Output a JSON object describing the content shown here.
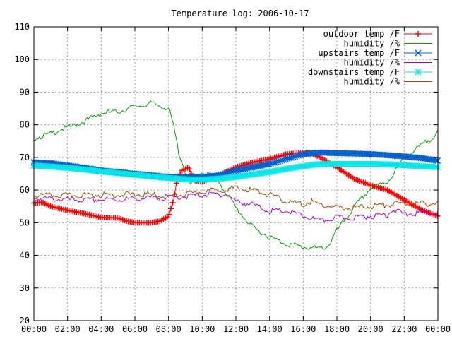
{
  "chart_data": {
    "type": "line",
    "title": "Temperature log: 2006-10-17",
    "xlabel": "",
    "ylabel": "",
    "xlim": [
      "00:00",
      "24:00"
    ],
    "ylim": [
      20,
      110
    ],
    "grid": true,
    "legend_position": "top-right",
    "x_ticks": [
      "00:00",
      "02:00",
      "04:00",
      "06:00",
      "08:00",
      "10:00",
      "12:00",
      "14:00",
      "16:00",
      "18:00",
      "20:00",
      "22:00",
      "00:00"
    ],
    "y_ticks": [
      "20",
      "30",
      "40",
      "50",
      "60",
      "70",
      "80",
      "90",
      "100",
      "110"
    ],
    "series": [
      {
        "name": "outdoor temp /F",
        "color": "#ff0000",
        "marker": "plus",
        "dense": true,
        "points": [
          [
            0,
            56
          ],
          [
            0.5,
            56.3
          ],
          [
            1,
            55
          ],
          [
            2,
            53.8
          ],
          [
            3,
            52.8
          ],
          [
            4,
            51.6
          ],
          [
            5,
            51.5
          ],
          [
            5.5,
            50.5
          ],
          [
            6,
            50
          ],
          [
            7,
            50
          ],
          [
            7.5,
            50.5
          ],
          [
            8,
            52
          ],
          [
            8.3,
            57
          ],
          [
            8.5,
            63
          ],
          [
            8.8,
            66
          ],
          [
            9.2,
            67
          ],
          [
            9.5,
            63
          ],
          [
            10,
            62.5
          ],
          [
            11,
            64.5
          ],
          [
            12,
            67
          ],
          [
            13,
            68.5
          ],
          [
            14,
            69.5
          ],
          [
            15,
            71
          ],
          [
            16,
            71.5
          ],
          [
            16.5,
            71.3
          ],
          [
            17,
            70
          ],
          [
            18,
            67
          ],
          [
            19,
            63.5
          ],
          [
            20,
            61.5
          ],
          [
            21,
            60
          ],
          [
            22,
            57
          ],
          [
            23,
            54
          ],
          [
            24,
            52
          ]
        ]
      },
      {
        "name": "humidity /%",
        "color": "#00a000",
        "marker": "none",
        "points": [
          [
            0,
            76.5
          ],
          [
            0.5,
            77
          ],
          [
            1,
            77.5
          ],
          [
            1.5,
            79
          ],
          [
            2,
            79.5
          ],
          [
            3,
            81.5
          ],
          [
            4,
            84
          ],
          [
            5,
            84.5
          ],
          [
            6,
            86
          ],
          [
            7,
            87
          ],
          [
            8,
            85.5
          ],
          [
            8.3,
            80
          ],
          [
            8.6,
            72
          ],
          [
            9,
            66
          ],
          [
            9.3,
            62
          ],
          [
            9.7,
            65
          ],
          [
            10,
            66
          ],
          [
            10.5,
            65
          ],
          [
            11,
            63
          ],
          [
            12,
            55
          ],
          [
            13,
            49
          ],
          [
            14,
            46
          ],
          [
            15,
            44
          ],
          [
            16,
            43
          ],
          [
            17,
            42.5
          ],
          [
            17.5,
            43.5
          ],
          [
            18,
            48
          ],
          [
            19,
            55
          ],
          [
            20,
            61
          ],
          [
            21,
            63
          ],
          [
            22,
            70
          ],
          [
            23,
            74
          ],
          [
            24,
            78
          ]
        ]
      },
      {
        "name": "upstairs temp /F",
        "color": "#0060d0",
        "marker": "x",
        "dense": true,
        "points": [
          [
            0,
            68.5
          ],
          [
            1,
            68.2
          ],
          [
            2,
            67.5
          ],
          [
            3,
            66.8
          ],
          [
            4,
            66
          ],
          [
            5,
            65.5
          ],
          [
            6,
            65
          ],
          [
            7,
            64.5
          ],
          [
            8,
            64
          ],
          [
            9,
            64
          ],
          [
            10,
            64
          ],
          [
            11,
            64.5
          ],
          [
            12,
            66
          ],
          [
            13,
            67
          ],
          [
            14,
            68
          ],
          [
            15,
            69.5
          ],
          [
            16,
            71
          ],
          [
            17,
            71.5
          ],
          [
            18,
            71.3
          ],
          [
            19,
            71.2
          ],
          [
            20,
            71
          ],
          [
            21,
            70.7
          ],
          [
            22,
            70.3
          ],
          [
            23,
            69.8
          ],
          [
            24,
            69
          ]
        ]
      },
      {
        "name": "humidity /%",
        "color": "#b000d0",
        "marker": "none",
        "points": [
          [
            0,
            58
          ],
          [
            1,
            57.8
          ],
          [
            2,
            57.5
          ],
          [
            3,
            57.3
          ],
          [
            4,
            57.5
          ],
          [
            5,
            57.5
          ],
          [
            6,
            57.8
          ],
          [
            7,
            58
          ],
          [
            8,
            58
          ],
          [
            9,
            58.5
          ],
          [
            10,
            59
          ],
          [
            11,
            59.2
          ],
          [
            11.5,
            59
          ],
          [
            12,
            57
          ],
          [
            13,
            56
          ],
          [
            14,
            54
          ],
          [
            15,
            54
          ],
          [
            16,
            52.5
          ],
          [
            17,
            51
          ],
          [
            18,
            52
          ],
          [
            19,
            52
          ],
          [
            20,
            52.5
          ],
          [
            21,
            53
          ],
          [
            21.3,
            54.5
          ],
          [
            22,
            53
          ],
          [
            23,
            53.5
          ],
          [
            24,
            53.5
          ]
        ]
      },
      {
        "name": "downstairs temp /F",
        "color": "#00e8e8",
        "marker": "star",
        "dense": true,
        "points": [
          [
            0,
            67.5
          ],
          [
            1,
            67.2
          ],
          [
            2,
            66.8
          ],
          [
            3,
            66.3
          ],
          [
            4,
            65.7
          ],
          [
            5,
            65.2
          ],
          [
            6,
            64.7
          ],
          [
            7,
            64.2
          ],
          [
            8,
            63.7
          ],
          [
            9,
            63.3
          ],
          [
            10,
            63.2
          ],
          [
            11,
            63.5
          ],
          [
            12,
            64
          ],
          [
            13,
            64.8
          ],
          [
            14,
            65.5
          ],
          [
            15,
            66.5
          ],
          [
            16,
            67.3
          ],
          [
            17,
            68
          ],
          [
            18,
            68
          ],
          [
            19,
            68
          ],
          [
            20,
            68
          ],
          [
            21,
            67.9
          ],
          [
            22,
            67.6
          ],
          [
            23,
            67.3
          ],
          [
            24,
            67
          ]
        ]
      },
      {
        "name": "humidity /%",
        "color": "#a05000",
        "marker": "none",
        "points": [
          [
            0,
            58.8
          ],
          [
            1,
            58.8
          ],
          [
            2,
            58.8
          ],
          [
            3,
            58.9
          ],
          [
            4,
            59
          ],
          [
            5,
            59
          ],
          [
            6,
            59.1
          ],
          [
            7,
            59
          ],
          [
            8,
            58.5
          ],
          [
            9,
            59
          ],
          [
            10,
            60
          ],
          [
            11,
            60.5
          ],
          [
            12,
            61
          ],
          [
            13,
            60.5
          ],
          [
            14,
            59
          ],
          [
            14.5,
            58
          ],
          [
            15,
            57
          ],
          [
            16,
            56
          ],
          [
            16.5,
            57
          ],
          [
            17,
            56
          ],
          [
            18,
            55
          ],
          [
            19,
            55
          ],
          [
            20,
            55.5
          ],
          [
            21,
            56
          ],
          [
            22,
            56.3
          ],
          [
            23,
            56.3
          ],
          [
            24,
            56.3
          ]
        ]
      }
    ]
  }
}
